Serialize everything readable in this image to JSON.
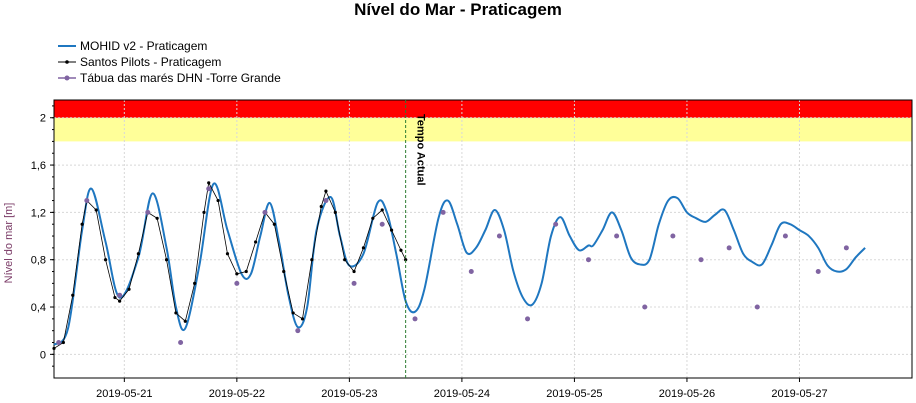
{
  "chart_data": {
    "type": "line",
    "title": "Nível do Mar - Praticagem",
    "ylabel": "Nível do mar [m]",
    "xlabel": "",
    "ylim": [
      -0.2,
      2.15
    ],
    "xlim": [
      "2019-05-20T09:00",
      "2019-05-28T00:00"
    ],
    "yticks": [
      0,
      0.4,
      0.8,
      1.2,
      1.6,
      2
    ],
    "ytick_labels": [
      "0",
      "0,4",
      "0,8",
      "1,2",
      "1,6",
      "2"
    ],
    "xticks": [
      "2019-05-21",
      "2019-05-22",
      "2019-05-23",
      "2019-05-24",
      "2019-05-25",
      "2019-05-26",
      "2019-05-27"
    ],
    "legend_position": "top-left",
    "bands": [
      {
        "from": 1.8,
        "to": 2.0,
        "color": "#ffff99"
      },
      {
        "from": 2.0,
        "to": 2.15,
        "color": "#ff0000"
      }
    ],
    "annotation": {
      "label": "Tempo Actual",
      "x": "2019-05-23T12:00",
      "color": "#2e7d32"
    },
    "series": [
      {
        "name": "MOHID v2 - Praticagem",
        "style": "line",
        "color": "#1f77c0",
        "points": [
          [
            "2019-05-20T09:00",
            0.08
          ],
          [
            "2019-05-20T12:00",
            0.22
          ],
          [
            "2019-05-20T15:00",
            1.05
          ],
          [
            "2019-05-20T17:00",
            1.4
          ],
          [
            "2019-05-20T20:00",
            0.95
          ],
          [
            "2019-05-20T23:00",
            0.48
          ],
          [
            "2019-05-21T03:00",
            0.82
          ],
          [
            "2019-05-21T06:00",
            1.36
          ],
          [
            "2019-05-21T09:00",
            0.9
          ],
          [
            "2019-05-21T11:00",
            0.4
          ],
          [
            "2019-05-21T13:00",
            0.22
          ],
          [
            "2019-05-21T16:00",
            0.75
          ],
          [
            "2019-05-21T19:00",
            1.44
          ],
          [
            "2019-05-21T22:00",
            1.05
          ],
          [
            "2019-05-22T01:00",
            0.68
          ],
          [
            "2019-05-22T03:00",
            0.68
          ],
          [
            "2019-05-22T05:00",
            1.0
          ],
          [
            "2019-05-22T07:00",
            1.28
          ],
          [
            "2019-05-22T09:00",
            0.95
          ],
          [
            "2019-05-22T11:00",
            0.5
          ],
          [
            "2019-05-22T13:00",
            0.23
          ],
          [
            "2019-05-22T15:00",
            0.4
          ],
          [
            "2019-05-22T17:00",
            1.05
          ],
          [
            "2019-05-22T20:00",
            1.33
          ],
          [
            "2019-05-22T22:00",
            1.0
          ],
          [
            "2019-05-23T00:00",
            0.75
          ],
          [
            "2019-05-23T03:00",
            0.85
          ],
          [
            "2019-05-23T06:00",
            1.28
          ],
          [
            "2019-05-23T08:00",
            1.2
          ],
          [
            "2019-05-23T10:00",
            0.85
          ],
          [
            "2019-05-23T12:00",
            0.45
          ],
          [
            "2019-05-23T14:00",
            0.36
          ],
          [
            "2019-05-23T16:00",
            0.55
          ],
          [
            "2019-05-23T19:00",
            1.15
          ],
          [
            "2019-05-23T21:00",
            1.3
          ],
          [
            "2019-05-23T23:00",
            1.1
          ],
          [
            "2019-05-24T01:00",
            0.86
          ],
          [
            "2019-05-24T03:00",
            0.9
          ],
          [
            "2019-05-24T05:00",
            1.05
          ],
          [
            "2019-05-24T07:00",
            1.22
          ],
          [
            "2019-05-24T09:00",
            1.05
          ],
          [
            "2019-05-24T11:00",
            0.7
          ],
          [
            "2019-05-24T13:00",
            0.48
          ],
          [
            "2019-05-24T15:00",
            0.42
          ],
          [
            "2019-05-24T17:00",
            0.6
          ],
          [
            "2019-05-24T19:00",
            1.0
          ],
          [
            "2019-05-24T21:00",
            1.16
          ],
          [
            "2019-05-24T23:00",
            1.0
          ],
          [
            "2019-05-25T01:00",
            0.88
          ],
          [
            "2019-05-25T03:00",
            0.92
          ],
          [
            "2019-05-25T04:00",
            0.92
          ],
          [
            "2019-05-25T06:00",
            1.05
          ],
          [
            "2019-05-25T08:00",
            1.2
          ],
          [
            "2019-05-25T10:00",
            1.05
          ],
          [
            "2019-05-25T12:00",
            0.82
          ],
          [
            "2019-05-25T14:00",
            0.76
          ],
          [
            "2019-05-25T16:00",
            0.8
          ],
          [
            "2019-05-25T18:00",
            1.1
          ],
          [
            "2019-05-25T20:00",
            1.3
          ],
          [
            "2019-05-25T22:00",
            1.32
          ],
          [
            "2019-05-26T00:00",
            1.2
          ],
          [
            "2019-05-26T02:00",
            1.15
          ],
          [
            "2019-05-26T04:00",
            1.12
          ],
          [
            "2019-05-26T06:00",
            1.18
          ],
          [
            "2019-05-26T08:00",
            1.22
          ],
          [
            "2019-05-26T10:00",
            1.05
          ],
          [
            "2019-05-26T12:00",
            0.85
          ],
          [
            "2019-05-26T14:00",
            0.78
          ],
          [
            "2019-05-26T16:00",
            0.76
          ],
          [
            "2019-05-26T18:00",
            0.92
          ],
          [
            "2019-05-26T20:00",
            1.1
          ],
          [
            "2019-05-26T22:00",
            1.1
          ],
          [
            "2019-05-27T00:00",
            1.05
          ],
          [
            "2019-05-27T02:00",
            1.0
          ],
          [
            "2019-05-27T04:00",
            0.9
          ],
          [
            "2019-05-27T06:00",
            0.75
          ],
          [
            "2019-05-27T08:00",
            0.7
          ],
          [
            "2019-05-27T10:00",
            0.72
          ],
          [
            "2019-05-27T12:00",
            0.82
          ],
          [
            "2019-05-27T14:00",
            0.9
          ]
        ]
      },
      {
        "name": "Santos Pilots - Praticagem",
        "style": "dotted-line",
        "color": "#000000",
        "points": [
          [
            "2019-05-20T09:00",
            0.05
          ],
          [
            "2019-05-20T11:00",
            0.1
          ],
          [
            "2019-05-20T13:00",
            0.5
          ],
          [
            "2019-05-20T15:00",
            1.1
          ],
          [
            "2019-05-20T16:00",
            1.3
          ],
          [
            "2019-05-20T18:00",
            1.22
          ],
          [
            "2019-05-20T20:00",
            0.8
          ],
          [
            "2019-05-20T22:00",
            0.48
          ],
          [
            "2019-05-20T23:00",
            0.45
          ],
          [
            "2019-05-21T01:00",
            0.55
          ],
          [
            "2019-05-21T03:00",
            0.85
          ],
          [
            "2019-05-21T05:00",
            1.2
          ],
          [
            "2019-05-21T07:00",
            1.15
          ],
          [
            "2019-05-21T09:00",
            0.8
          ],
          [
            "2019-05-21T11:00",
            0.35
          ],
          [
            "2019-05-21T13:00",
            0.28
          ],
          [
            "2019-05-21T15:00",
            0.6
          ],
          [
            "2019-05-21T17:00",
            1.2
          ],
          [
            "2019-05-21T18:00",
            1.45
          ],
          [
            "2019-05-21T20:00",
            1.3
          ],
          [
            "2019-05-21T22:00",
            0.85
          ],
          [
            "2019-05-22T00:00",
            0.68
          ],
          [
            "2019-05-22T02:00",
            0.7
          ],
          [
            "2019-05-22T04:00",
            0.95
          ],
          [
            "2019-05-22T06:00",
            1.2
          ],
          [
            "2019-05-22T08:00",
            1.1
          ],
          [
            "2019-05-22T10:00",
            0.7
          ],
          [
            "2019-05-22T12:00",
            0.35
          ],
          [
            "2019-05-22T14:00",
            0.3
          ],
          [
            "2019-05-22T16:00",
            0.8
          ],
          [
            "2019-05-22T18:00",
            1.25
          ],
          [
            "2019-05-22T19:00",
            1.38
          ],
          [
            "2019-05-22T21:00",
            1.2
          ],
          [
            "2019-05-22T23:00",
            0.8
          ],
          [
            "2019-05-23T01:00",
            0.7
          ],
          [
            "2019-05-23T03:00",
            0.9
          ],
          [
            "2019-05-23T05:00",
            1.15
          ],
          [
            "2019-05-23T07:00",
            1.22
          ],
          [
            "2019-05-23T09:00",
            1.05
          ],
          [
            "2019-05-23T11:00",
            0.88
          ],
          [
            "2019-05-23T12:00",
            0.8
          ]
        ]
      },
      {
        "name": "Tábua das marés DHN -Torre Grande",
        "style": "markers",
        "color": "#8064a2",
        "points": [
          [
            "2019-05-20T10:00",
            0.1
          ],
          [
            "2019-05-20T16:00",
            1.3
          ],
          [
            "2019-05-20T23:00",
            0.5
          ],
          [
            "2019-05-21T05:00",
            1.2
          ],
          [
            "2019-05-21T12:00",
            0.1
          ],
          [
            "2019-05-21T18:00",
            1.4
          ],
          [
            "2019-05-22T00:00",
            0.6
          ],
          [
            "2019-05-22T06:00",
            1.2
          ],
          [
            "2019-05-22T13:00",
            0.2
          ],
          [
            "2019-05-22T19:00",
            1.3
          ],
          [
            "2019-05-23T01:00",
            0.6
          ],
          [
            "2019-05-23T07:00",
            1.1
          ],
          [
            "2019-05-23T14:00",
            0.3
          ],
          [
            "2019-05-23T20:00",
            1.2
          ],
          [
            "2019-05-24T02:00",
            0.7
          ],
          [
            "2019-05-24T08:00",
            1.0
          ],
          [
            "2019-05-24T14:00",
            0.3
          ],
          [
            "2019-05-24T20:00",
            1.1
          ],
          [
            "2019-05-25T03:00",
            0.8
          ],
          [
            "2019-05-25T09:00",
            1.0
          ],
          [
            "2019-05-25T15:00",
            0.4
          ],
          [
            "2019-05-25T21:00",
            1.0
          ],
          [
            "2019-05-26T03:00",
            0.8
          ],
          [
            "2019-05-26T09:00",
            0.9
          ],
          [
            "2019-05-26T15:00",
            0.4
          ],
          [
            "2019-05-26T21:00",
            1.0
          ],
          [
            "2019-05-27T04:00",
            0.7
          ],
          [
            "2019-05-27T10:00",
            0.9
          ]
        ]
      }
    ]
  }
}
